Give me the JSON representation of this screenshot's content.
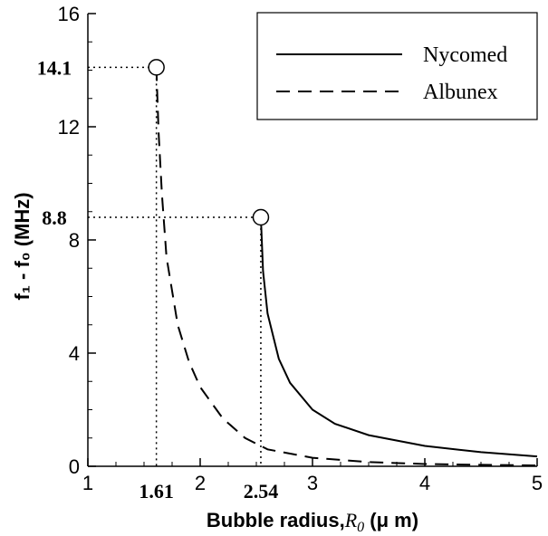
{
  "chart_data": {
    "type": "line",
    "xlabel": "Bubble radius,",
    "xlabel_var": "R",
    "xlabel_sub": "0",
    "xlabel_unit": " (μ m)",
    "ylabel": "f₁ - f₀ (MHz)",
    "xlim": [
      1,
      5
    ],
    "ylim": [
      0,
      16
    ],
    "x_ticks": [
      "1",
      "2",
      "3",
      "4",
      "5"
    ],
    "y_ticks": [
      "0",
      "4",
      "8",
      "12",
      "16"
    ],
    "grid": false,
    "legend_position": "top-right",
    "series": [
      {
        "name": "Nycomed",
        "style": "solid",
        "x": [
          2.54,
          2.56,
          2.6,
          2.7,
          2.8,
          3.0,
          3.2,
          3.5,
          4.0,
          4.5,
          5.0
        ],
        "y": [
          8.8,
          6.9,
          5.4,
          3.8,
          2.95,
          2.0,
          1.5,
          1.1,
          0.72,
          0.5,
          0.35
        ]
      },
      {
        "name": "Albunex",
        "style": "dashed",
        "x": [
          1.61,
          1.63,
          1.66,
          1.7,
          1.8,
          1.9,
          2.0,
          2.2,
          2.4,
          2.6,
          3.0,
          3.5,
          4.0,
          4.5,
          5.0
        ],
        "y": [
          14.1,
          11.8,
          9.6,
          7.4,
          5.0,
          3.7,
          2.8,
          1.7,
          1.0,
          0.6,
          0.3,
          0.15,
          0.08,
          0.05,
          0.03
        ]
      }
    ],
    "annotations": [
      {
        "x": 1.61,
        "y": 14.1,
        "x_label": "1.61",
        "y_label": "14.1"
      },
      {
        "x": 2.54,
        "y": 8.8,
        "x_label": "2.54",
        "y_label": "8.8"
      }
    ]
  }
}
